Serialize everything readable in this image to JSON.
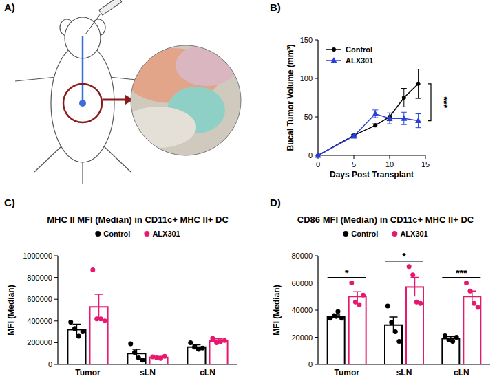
{
  "illustration": {
    "panel_label": "A)"
  },
  "chart_data": [
    {
      "type": "line",
      "panel_label": "B)",
      "x_label": "Days Post Transplant",
      "y_label": "Bucal Tumor Volume (mm³)",
      "x": [
        0,
        5,
        8,
        10,
        12,
        14
      ],
      "series": [
        {
          "name": "Control",
          "color": "#000000",
          "marker": "circle",
          "values": [
            0,
            26,
            39,
            50,
            75,
            93
          ],
          "errors": [
            0,
            1,
            2,
            5,
            12,
            19
          ]
        },
        {
          "name": "ALX301",
          "color": "#2a3fd9",
          "marker": "triangle",
          "values": [
            0,
            25,
            54,
            48,
            48,
            45
          ],
          "errors": [
            0,
            1,
            5,
            7,
            8,
            9
          ]
        }
      ],
      "xlim": [
        0,
        15
      ],
      "xticks": [
        0,
        5,
        10,
        15
      ],
      "ylim": [
        0,
        150
      ],
      "yticks": [
        0,
        50,
        100,
        150
      ],
      "legend": "top-left",
      "annotations": [
        "***"
      ]
    },
    {
      "type": "bar",
      "panel_label": "C)",
      "title": "MHC II MFI (Median) in CD11c+ MHC II+ DC",
      "y_label": "MFI (Median)",
      "categories": [
        "Tumor",
        "sLN",
        "cLN"
      ],
      "series": [
        {
          "name": "Control",
          "color": "#000000",
          "values": [
            320000,
            100000,
            160000
          ],
          "errors": [
            50000,
            40000,
            20000
          ],
          "points": [
            [
              390000,
              330000,
              260000,
              300000
            ],
            [
              190000,
              110000,
              60000,
              40000
            ],
            [
              200000,
              160000,
              140000,
              150000
            ]
          ]
        },
        {
          "name": "ALX301",
          "color": "#e6196e",
          "values": [
            530000,
            65000,
            215000
          ],
          "errors": [
            115000,
            10000,
            20000
          ],
          "points": [
            [
              870000,
              420000,
              420000,
              400000
            ],
            [
              70000,
              60000,
              55000,
              75000
            ],
            [
              240000,
              200000,
              210000,
              220000
            ]
          ]
        }
      ],
      "ylim": [
        0,
        1000000
      ],
      "yticks": [
        0,
        200000,
        400000,
        600000,
        800000,
        1000000
      ],
      "legend": "top"
    },
    {
      "type": "bar",
      "panel_label": "D)",
      "title": "CD86 MFI (Median) in CD11c+ MHC II+ DC",
      "y_label": "MFI (Median)",
      "categories": [
        "Tumor",
        "sLN",
        "cLN"
      ],
      "series": [
        {
          "name": "Control",
          "color": "#000000",
          "values": [
            35000,
            29000,
            19000
          ],
          "errors": [
            1500,
            6000,
            1500
          ],
          "points": [
            [
              34000,
              36000,
              39000,
              34000
            ],
            [
              43000,
              31000,
              24000,
              17000
            ],
            [
              21000,
              18000,
              17000,
              20000
            ]
          ]
        },
        {
          "name": "ALX301",
          "color": "#e6196e",
          "values": [
            50000,
            57000,
            50000
          ],
          "errors": [
            3500,
            7000,
            4000
          ],
          "points": [
            [
              60000,
              46000,
              44000,
              51000
            ],
            [
              72000,
              66000,
              46000,
              45000
            ],
            [
              60000,
              54000,
              45000,
              42000
            ]
          ]
        }
      ],
      "ylim": [
        0,
        80000
      ],
      "yticks": [
        0,
        20000,
        40000,
        60000,
        80000
      ],
      "legend": "top",
      "annotations": [
        "*",
        "*",
        "***"
      ]
    }
  ]
}
